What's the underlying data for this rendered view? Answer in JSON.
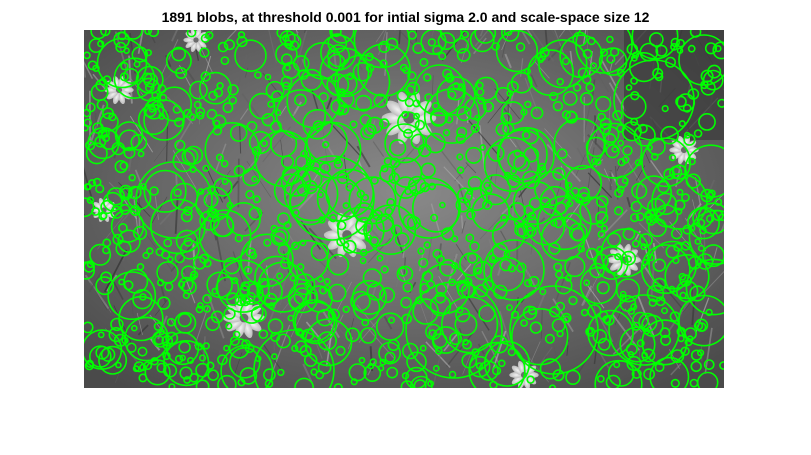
{
  "figure": {
    "title": "1891 blobs, at threshold 0.001 for intial sigma 2.0 and scale-space size 12"
  },
  "image": {
    "description_tag": "grayscale-flower-field",
    "colors": {
      "background": "#7f7f7f",
      "blob_stroke": "#00ff00"
    }
  },
  "blobs": {
    "count": 1891,
    "threshold": 0.001,
    "initial_sigma": 2.0,
    "scale_space_size": 12
  }
}
